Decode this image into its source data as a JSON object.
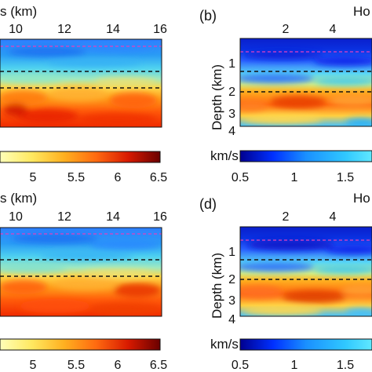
{
  "panels": {
    "tl": {
      "top_axis_label": "s (km)",
      "top_ticks": [
        "10",
        "12",
        "14",
        "16"
      ],
      "colorbar_ticks": [
        "5",
        "5.5",
        "6",
        "6.5"
      ]
    },
    "tr": {
      "panel_letter": "(b)",
      "top_axis_label": "Ho",
      "top_ticks": [
        "2",
        "4"
      ],
      "ylabel": "Depth (km)",
      "y_ticks": [
        "1",
        "2",
        "3",
        "4"
      ],
      "colorbar_label": "km/s",
      "colorbar_ticks": [
        "0.5",
        "1",
        "1.5"
      ]
    },
    "bl": {
      "top_axis_label": "s (km)",
      "top_ticks": [
        "10",
        "12",
        "14",
        "16"
      ],
      "colorbar_ticks": [
        "5",
        "5.5",
        "6",
        "6.5"
      ]
    },
    "br": {
      "panel_letter": "(d)",
      "top_axis_label": "Ho",
      "top_ticks": [
        "2",
        "4"
      ],
      "ylabel": "Depth (km)",
      "y_ticks": [
        "1",
        "2",
        "3",
        "4"
      ],
      "colorbar_label": "km/s",
      "colorbar_ticks": [
        "0.5",
        "1",
        "1.5"
      ]
    }
  },
  "colors": {
    "jet_dark_blue": "#00008f",
    "jet_blue": "#0050ff",
    "jet_cyan": "#40e0ff",
    "jet_yellow": "#ffe040",
    "jet_orange": "#ff8000",
    "jet_red": "#e01000",
    "jet_dark_red": "#7a0000",
    "hot_light": "#ffffb0",
    "dashed_line": "#111111",
    "magenta_line": "#e040c0"
  }
}
